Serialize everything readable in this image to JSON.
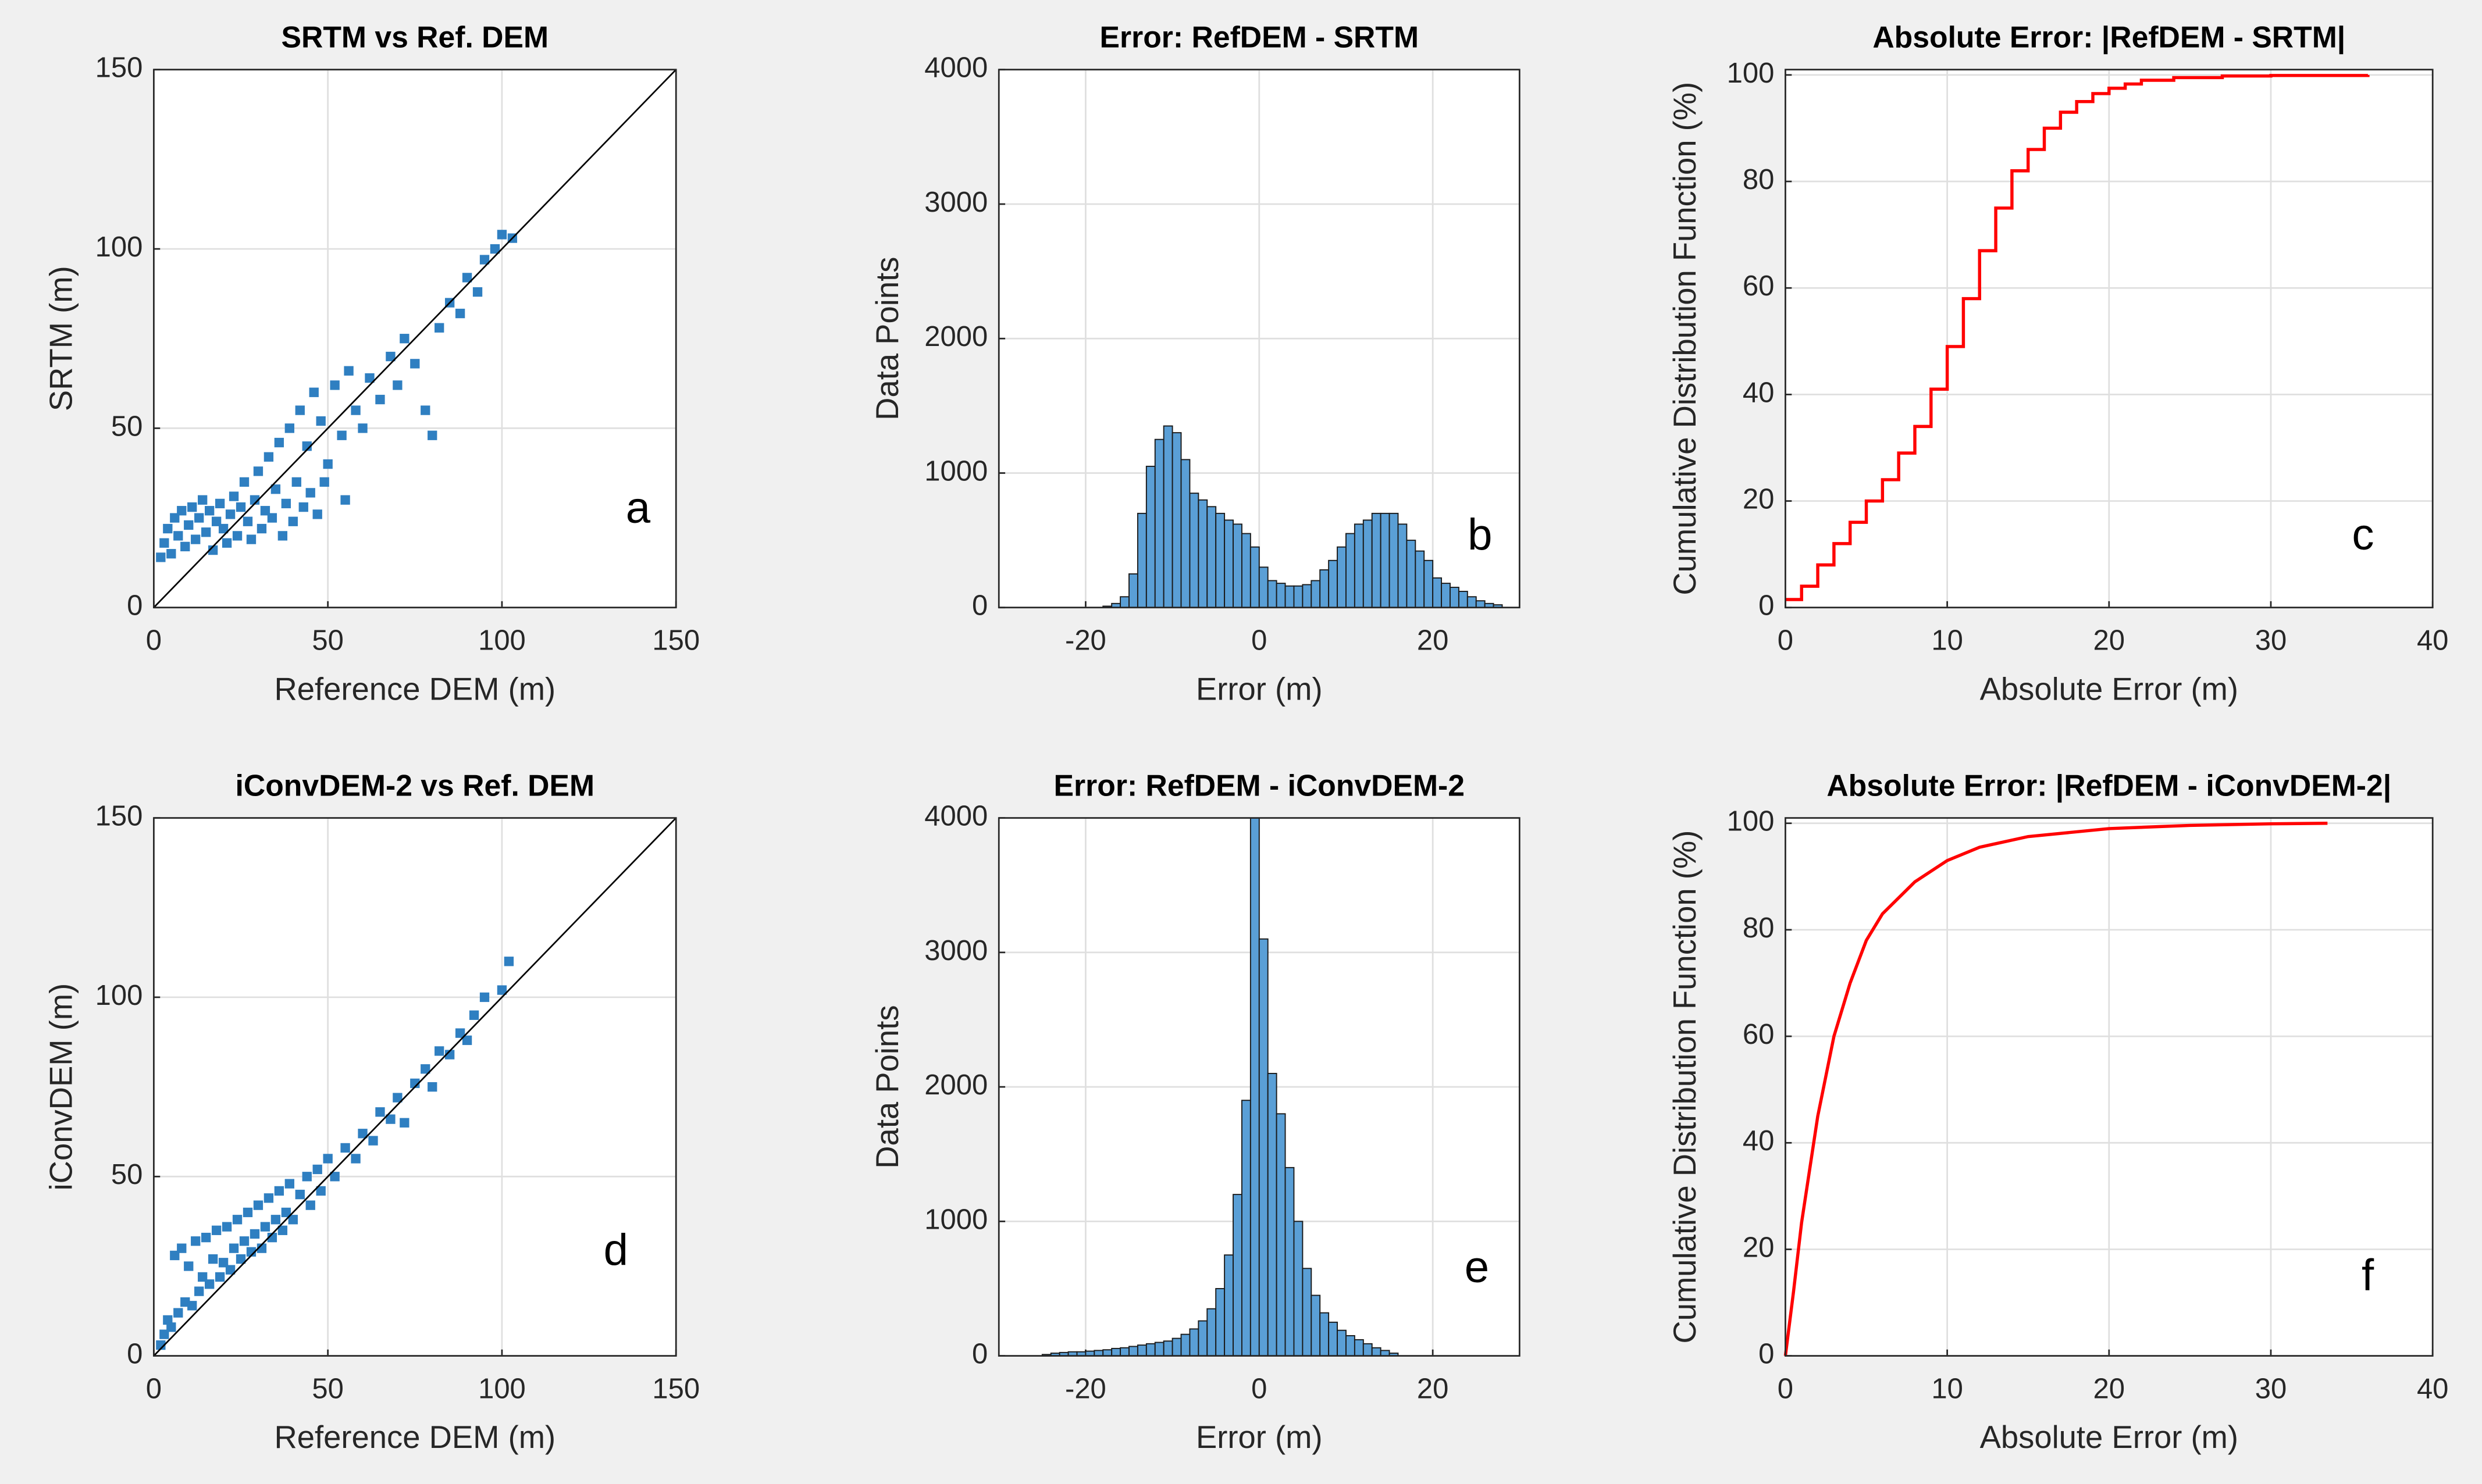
{
  "chart_data": [
    {
      "type": "scatter",
      "title": "SRTM vs Ref. DEM",
      "xlabel": "Reference DEM (m)",
      "ylabel": "SRTM (m)",
      "annotation": "a",
      "xlim": [
        0,
        150
      ],
      "ylim": [
        0,
        150
      ],
      "xticks": [
        0,
        50,
        100,
        150
      ],
      "yticks": [
        0,
        50,
        100,
        150
      ],
      "grid": true,
      "color": "#2f7fc1",
      "x": [
        2,
        3,
        4,
        5,
        6,
        7,
        8,
        9,
        10,
        11,
        12,
        13,
        14,
        15,
        16,
        17,
        18,
        19,
        20,
        21,
        22,
        23,
        24,
        25,
        26,
        27,
        28,
        29,
        30,
        31,
        32,
        33,
        34,
        35,
        36,
        37,
        38,
        39,
        40,
        41,
        42,
        43,
        44,
        45,
        46,
        47,
        48,
        49,
        50,
        52,
        54,
        55,
        56,
        58,
        60,
        62,
        65,
        68,
        70,
        72,
        75,
        78,
        80,
        82,
        85,
        88,
        90,
        93,
        95,
        98,
        100,
        103
      ],
      "values": [
        14,
        18,
        22,
        15,
        25,
        20,
        27,
        17,
        23,
        28,
        19,
        25,
        30,
        21,
        27,
        16,
        24,
        29,
        22,
        18,
        26,
        31,
        20,
        28,
        35,
        24,
        19,
        30,
        38,
        22,
        27,
        42,
        25,
        33,
        46,
        20,
        29,
        50,
        24,
        35,
        55,
        28,
        45,
        32,
        60,
        26,
        52,
        35,
        40,
        62,
        48,
        30,
        66,
        55,
        50,
        64,
        58,
        70,
        62,
        75,
        68,
        55,
        48,
        78,
        85,
        82,
        92,
        88,
        97,
        100,
        104,
        103
      ],
      "reference_line": {
        "x": [
          0,
          150
        ],
        "values": [
          0,
          150
        ],
        "color": "#000000"
      }
    },
    {
      "type": "histogram",
      "title": "Error: RefDEM - SRTM",
      "xlabel": "Error (m)",
      "ylabel": "Data Points",
      "annotation": "b",
      "xlim": [
        -30,
        30
      ],
      "ylim": [
        0,
        4000
      ],
      "xticks": [
        -20,
        0,
        20
      ],
      "yticks": [
        0,
        1000,
        2000,
        3000,
        4000
      ],
      "grid": true,
      "color": "#5a9fd6",
      "bins": [
        -18,
        -17,
        -16,
        -15,
        -14,
        -13,
        -12,
        -11,
        -10,
        -9,
        -8,
        -7,
        -6,
        -5,
        -4,
        -3,
        -2,
        -1,
        0,
        1,
        2,
        3,
        4,
        5,
        6,
        7,
        8,
        9,
        10,
        11,
        12,
        13,
        14,
        15,
        16,
        17,
        18,
        19,
        20,
        21,
        22,
        23,
        24,
        25,
        26,
        27,
        28
      ],
      "values": [
        10,
        30,
        80,
        250,
        700,
        1050,
        1250,
        1350,
        1300,
        1100,
        850,
        800,
        750,
        700,
        650,
        620,
        550,
        450,
        300,
        200,
        180,
        160,
        160,
        170,
        200,
        280,
        350,
        450,
        550,
        620,
        650,
        700,
        700,
        700,
        620,
        500,
        420,
        350,
        220,
        180,
        150,
        120,
        80,
        50,
        30,
        20
      ]
    },
    {
      "type": "line",
      "title": "Absolute Error: |RefDEM - SRTM|",
      "xlabel": "Absolute Error (m)",
      "ylabel": "Cumulative Distribution Function (%)",
      "annotation": "c",
      "xlim": [
        0,
        40
      ],
      "ylim": [
        0,
        101
      ],
      "xticks": [
        0,
        10,
        20,
        30,
        40
      ],
      "yticks": [
        0,
        20,
        40,
        60,
        80,
        100
      ],
      "grid": true,
      "color": "#ff0000",
      "step": true,
      "x": [
        0,
        1,
        2,
        3,
        4,
        5,
        6,
        7,
        8,
        9,
        10,
        11,
        12,
        13,
        14,
        15,
        16,
        17,
        18,
        19,
        20,
        21,
        22,
        24,
        27,
        30,
        36
      ],
      "values": [
        1.5,
        4,
        8,
        12,
        16,
        20,
        24,
        29,
        34,
        41,
        49,
        58,
        67,
        75,
        82,
        86,
        90,
        93,
        95,
        96.5,
        97.5,
        98.3,
        99,
        99.5,
        99.8,
        99.9,
        100
      ]
    },
    {
      "type": "scatter",
      "title": "iConvDEM-2 vs Ref. DEM",
      "xlabel": "Reference DEM (m)",
      "ylabel": "iConvDEM (m)",
      "annotation": "d",
      "xlim": [
        0,
        150
      ],
      "ylim": [
        0,
        150
      ],
      "xticks": [
        0,
        50,
        100,
        150
      ],
      "yticks": [
        0,
        50,
        100,
        150
      ],
      "grid": true,
      "color": "#2f7fc1",
      "x": [
        2,
        3,
        4,
        5,
        6,
        7,
        8,
        9,
        10,
        11,
        12,
        13,
        14,
        15,
        16,
        17,
        18,
        19,
        20,
        21,
        22,
        23,
        24,
        25,
        26,
        27,
        28,
        29,
        30,
        31,
        32,
        33,
        34,
        35,
        36,
        37,
        38,
        39,
        40,
        42,
        44,
        45,
        47,
        48,
        50,
        52,
        55,
        58,
        60,
        63,
        65,
        68,
        70,
        72,
        75,
        78,
        80,
        82,
        85,
        88,
        90,
        92,
        95,
        100,
        102
      ],
      "values": [
        3,
        6,
        10,
        8,
        28,
        12,
        30,
        15,
        25,
        14,
        32,
        18,
        22,
        33,
        20,
        27,
        35,
        22,
        26,
        36,
        24,
        30,
        38,
        27,
        32,
        40,
        29,
        34,
        42,
        30,
        36,
        44,
        33,
        38,
        46,
        35,
        40,
        48,
        38,
        45,
        50,
        42,
        52,
        46,
        55,
        50,
        58,
        55,
        62,
        60,
        68,
        66,
        72,
        65,
        76,
        80,
        75,
        85,
        84,
        90,
        88,
        95,
        100,
        102,
        110
      ],
      "reference_line": {
        "x": [
          0,
          150
        ],
        "values": [
          0,
          150
        ],
        "color": "#000000"
      }
    },
    {
      "type": "histogram",
      "title": "Error: RefDEM - iConvDEM-2",
      "xlabel": "Error (m)",
      "ylabel": "Data Points",
      "annotation": "e",
      "xlim": [
        -30,
        30
      ],
      "ylim": [
        0,
        4000
      ],
      "xticks": [
        -20,
        0,
        20
      ],
      "yticks": [
        0,
        1000,
        2000,
        3000,
        4000
      ],
      "grid": true,
      "color": "#5a9fd6",
      "bins": [
        -25,
        -24,
        -23,
        -22,
        -21,
        -20,
        -19,
        -18,
        -17,
        -16,
        -15,
        -14,
        -13,
        -12,
        -11,
        -10,
        -9,
        -8,
        -7,
        -6,
        -5,
        -4,
        -3,
        -2,
        -1,
        0,
        1,
        2,
        3,
        4,
        5,
        6,
        7,
        8,
        9,
        10,
        11,
        12,
        13,
        14,
        15,
        16
      ],
      "values": [
        10,
        20,
        25,
        30,
        30,
        35,
        40,
        45,
        55,
        60,
        70,
        80,
        90,
        100,
        110,
        130,
        160,
        200,
        260,
        350,
        500,
        750,
        1200,
        1900,
        4000,
        3100,
        2100,
        1800,
        1400,
        1000,
        650,
        450,
        320,
        250,
        190,
        150,
        120,
        90,
        60,
        40,
        20
      ]
    },
    {
      "type": "line",
      "title": "Absolute Error: |RefDEM - iConvDEM-2|",
      "xlabel": "Absolute Error (m)",
      "ylabel": "Cumulative Distribution Function (%)",
      "annotation": "f",
      "xlim": [
        0,
        40
      ],
      "ylim": [
        0,
        101
      ],
      "xticks": [
        0,
        10,
        20,
        30,
        40
      ],
      "yticks": [
        0,
        20,
        40,
        60,
        80,
        100
      ],
      "grid": true,
      "color": "#ff0000",
      "step": false,
      "x": [
        0,
        0.5,
        1,
        1.5,
        2,
        3,
        4,
        5,
        6,
        8,
        10,
        12,
        15,
        20,
        25,
        30,
        33.5
      ],
      "values": [
        0,
        12,
        25,
        35,
        45,
        60,
        70,
        78,
        83,
        89,
        93,
        95.5,
        97.5,
        99,
        99.6,
        99.9,
        100
      ]
    }
  ]
}
